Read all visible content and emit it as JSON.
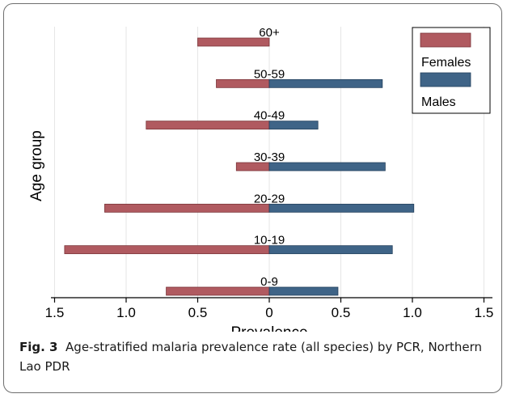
{
  "figure": {
    "caption_label": "Fig. 3",
    "caption_text": "Age-stratified malaria prevalence rate (all species) by PCR, Northern Lao PDR"
  },
  "colors": {
    "females": "#b05a60",
    "males": "#3f6487",
    "grid": "#e6e6e6",
    "axis": "#000000"
  },
  "chart_data": {
    "type": "bar",
    "orientation": "horizontal",
    "layout": "population-pyramid",
    "categories": [
      "0-9",
      "10-19",
      "20-29",
      "30-39",
      "40-49",
      "50-59",
      "60+"
    ],
    "series": [
      {
        "name": "Females",
        "side": "left",
        "values": [
          0.72,
          1.43,
          1.15,
          0.23,
          0.86,
          0.37,
          0.5
        ]
      },
      {
        "name": "Males",
        "side": "right",
        "values": [
          0.48,
          0.86,
          1.01,
          0.81,
          0.34,
          0.79,
          0
        ]
      }
    ],
    "xlabel": "Prevalence",
    "ylabel": "Age group",
    "xlim": [
      -1.55,
      1.55
    ],
    "xticks": [
      -1.5,
      -1.0,
      -0.5,
      0,
      0.5,
      1.0,
      1.5
    ],
    "xtick_labels": [
      "1.5",
      "1.0",
      "0.5",
      "0",
      "0.5",
      "1.0",
      "1.5"
    ],
    "grid": "vertical",
    "legend": "top-right"
  }
}
